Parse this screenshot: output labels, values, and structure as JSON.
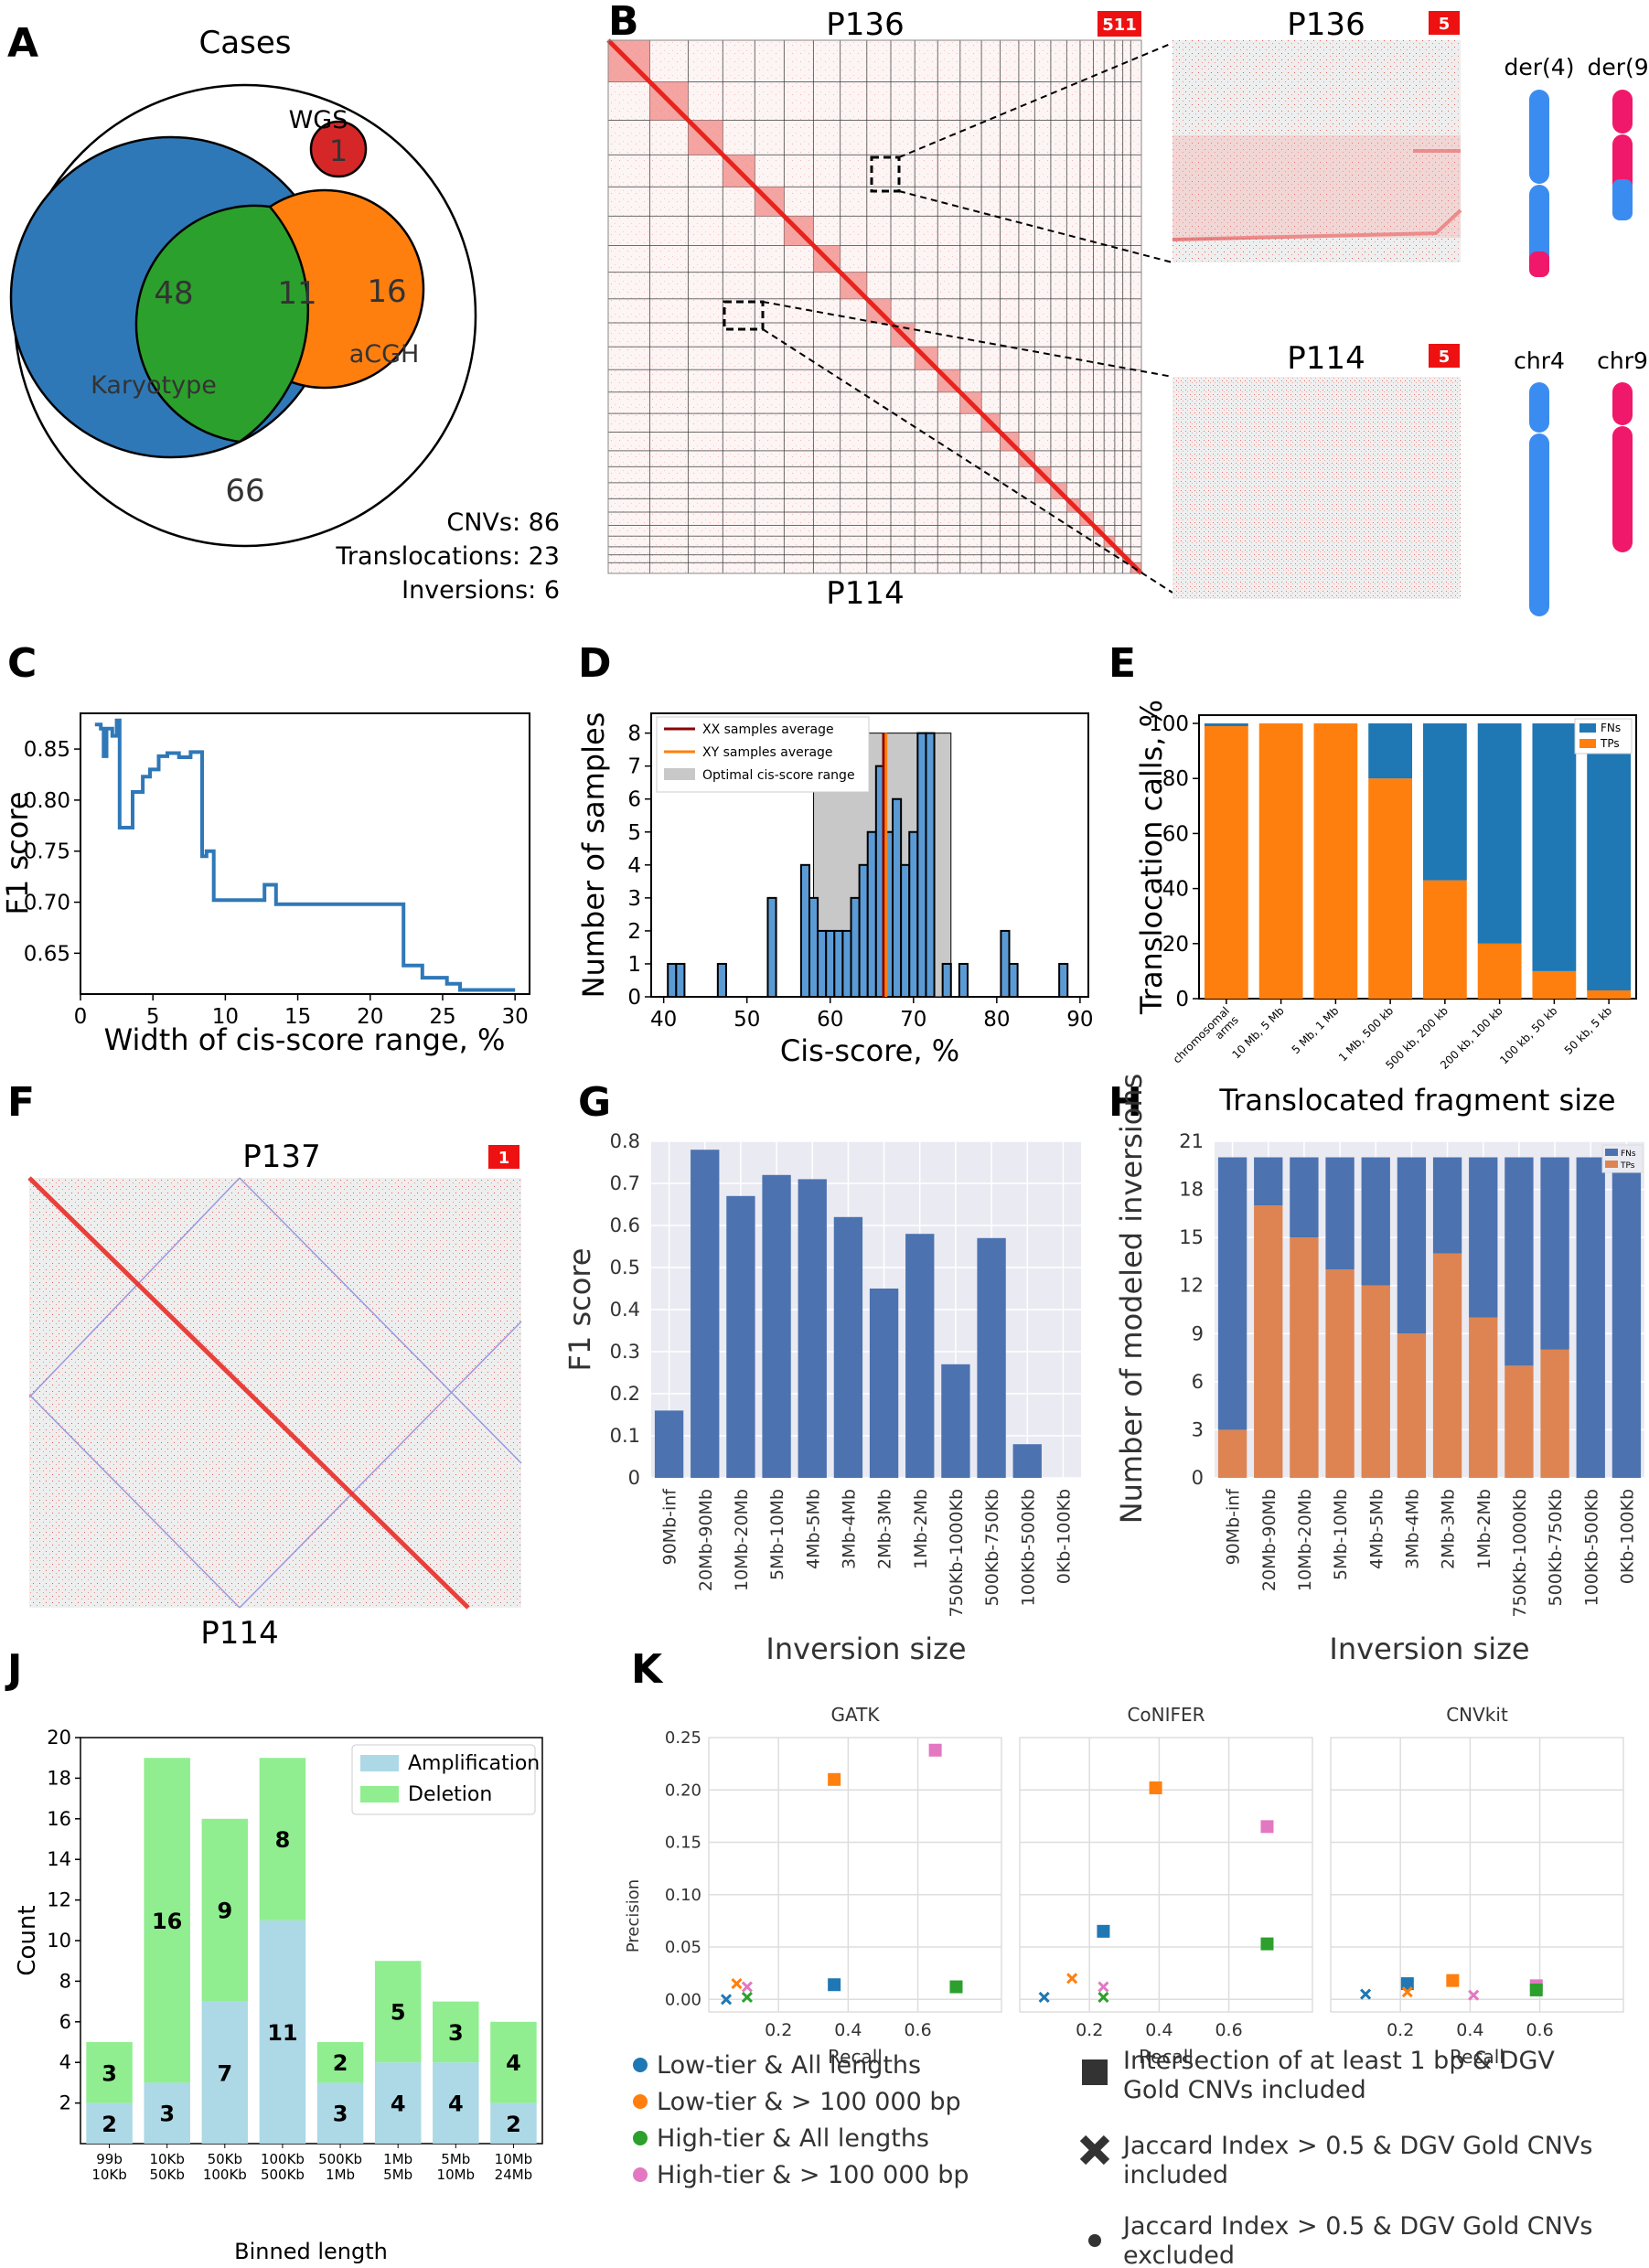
{
  "colors": {
    "blue": "#2f78b8",
    "orange": "#ff7f0e",
    "green": "#2ca02c",
    "red": "#d62728",
    "pink": "#e377c2",
    "seaborn_blue": "#4c72b0",
    "seaborn_orange": "#dd8452",
    "chr_blue": "#3b8cf0",
    "chr_pink": "#f0186a",
    "light_blue": "#add8e6",
    "light_green": "#90ee90",
    "grid_bg": "#eaeaf2",
    "hic_red": "#e8231e",
    "hic_bg": "#eeeeee"
  },
  "panels": {
    "A": "A",
    "B": "B",
    "C": "C",
    "D": "D",
    "E": "E",
    "F": "F",
    "G": "G",
    "H": "H",
    "J": "J",
    "K": "K"
  },
  "panelA": {
    "title": "Cases",
    "wgs_label": "WGS",
    "wgs_count": "1",
    "karyotype_only": "48",
    "overlap": "11",
    "acgh_only": "16",
    "karyotype_label": "Karyotype",
    "acgh_label": "aCGH",
    "outside": "66",
    "cnvs": "CNVs: 86",
    "translocations": "Translocations: 23",
    "inversions": "Inversions: 6"
  },
  "panelB": {
    "top_label": "P136",
    "bottom_label": "P114",
    "badge_main": "511",
    "zoom1_label": "P136",
    "zoom1_badge": "5",
    "zoom2_label": "P114",
    "zoom2_badge": "5",
    "der4": "der(4)",
    "der9": "der(9)",
    "chr4": "chr4",
    "chr9": "chr9"
  },
  "panelF": {
    "top_label": "P137",
    "bottom_label": "P114",
    "badge": "1"
  },
  "chart_data": [
    {
      "panel": "C",
      "type": "line",
      "xlabel": "Width of cis-score range, %",
      "ylabel": "F1 score",
      "xlim": [
        0,
        31
      ],
      "ylim": [
        0.61,
        0.885
      ],
      "xticks": [
        "0",
        "5",
        "10",
        "15",
        "20",
        "25",
        "30"
      ],
      "yticks": [
        "0.65",
        "0.70",
        "0.75",
        "0.80",
        "0.85"
      ],
      "x": [
        1.0,
        1.4,
        1.4,
        1.6,
        1.6,
        1.8,
        1.8,
        2.2,
        2.2,
        2.5,
        2.5,
        2.7,
        2.7,
        3.3,
        3.3,
        3.6,
        3.6,
        4.3,
        4.3,
        4.8,
        4.8,
        5.4,
        5.4,
        6.0,
        6.0,
        6.8,
        6.8,
        7.6,
        7.6,
        8.4,
        8.4,
        8.7,
        8.7,
        9.2,
        9.2,
        9.7,
        9.7,
        12.7,
        12.7,
        13.5,
        13.5,
        22.3,
        22.3,
        23.0,
        23.0,
        23.6,
        23.6,
        25.3,
        25.3,
        26.2,
        26.2,
        30.0
      ],
      "y": [
        0.874,
        0.874,
        0.87,
        0.87,
        0.843,
        0.843,
        0.87,
        0.87,
        0.863,
        0.863,
        0.878,
        0.878,
        0.773,
        0.773,
        0.773,
        0.773,
        0.808,
        0.808,
        0.823,
        0.823,
        0.83,
        0.83,
        0.843,
        0.843,
        0.846,
        0.846,
        0.842,
        0.842,
        0.847,
        0.847,
        0.745,
        0.745,
        0.75,
        0.75,
        0.702,
        0.702,
        0.702,
        0.702,
        0.717,
        0.717,
        0.698,
        0.698,
        0.638,
        0.638,
        0.638,
        0.638,
        0.626,
        0.626,
        0.62,
        0.62,
        0.614,
        0.614
      ]
    },
    {
      "panel": "D",
      "type": "bar",
      "xlabel": "Cis-score, %",
      "ylabel": "Number of samples",
      "xlim": [
        38.5,
        91
      ],
      "ylim": [
        0,
        8.6
      ],
      "xticks": [
        "40",
        "50",
        "60",
        "70",
        "80",
        "90"
      ],
      "yticks": [
        "0",
        "1",
        "2",
        "3",
        "4",
        "5",
        "6",
        "7",
        "8"
      ],
      "bin_width": 1,
      "bins": [
        {
          "x": 41,
          "v": 1
        },
        {
          "x": 42,
          "v": 1
        },
        {
          "x": 47,
          "v": 1
        },
        {
          "x": 53,
          "v": 3
        },
        {
          "x": 57,
          "v": 4
        },
        {
          "x": 58,
          "v": 3
        },
        {
          "x": 59,
          "v": 2
        },
        {
          "x": 60,
          "v": 2
        },
        {
          "x": 61,
          "v": 2
        },
        {
          "x": 62,
          "v": 2
        },
        {
          "x": 63,
          "v": 3
        },
        {
          "x": 64,
          "v": 4
        },
        {
          "x": 65,
          "v": 5
        },
        {
          "x": 66,
          "v": 7
        },
        {
          "x": 67,
          "v": 5
        },
        {
          "x": 68,
          "v": 6
        },
        {
          "x": 69,
          "v": 4
        },
        {
          "x": 70,
          "v": 5
        },
        {
          "x": 71,
          "v": 8
        },
        {
          "x": 72,
          "v": 8
        },
        {
          "x": 74,
          "v": 1
        },
        {
          "x": 76,
          "v": 1
        },
        {
          "x": 81,
          "v": 2
        },
        {
          "x": 82,
          "v": 1
        },
        {
          "x": 88,
          "v": 1
        }
      ],
      "xx_average": 66.4,
      "xy_average": 66.7,
      "optimal_range": [
        58,
        74.5
      ],
      "legend": [
        "XX samples average",
        "XY samples average",
        "Optimal cis-score range"
      ]
    },
    {
      "panel": "E",
      "type": "bar",
      "stacked": true,
      "xlabel": "Translocated fragment size",
      "ylabel": "Translocation calls, %",
      "ylim": [
        0,
        103
      ],
      "yticks": [
        "0",
        "20",
        "40",
        "60",
        "80",
        "100"
      ],
      "categories": [
        "chromosomal arms",
        "10 Mb, 5 Mb",
        "5 Mb, 1 Mb",
        "1 Mb, 500 kb",
        "500 kb, 200 kb",
        "200 kb, 100 kb",
        "100 kb, 50 kb",
        "50 kb, 5 kb"
      ],
      "series": [
        {
          "name": "TPs",
          "values": [
            99,
            100,
            100,
            80,
            43,
            20,
            10,
            3
          ]
        },
        {
          "name": "FNs",
          "values": [
            1,
            0,
            0,
            20,
            57,
            80,
            90,
            97
          ]
        }
      ],
      "legend": [
        "FNs",
        "TPs"
      ]
    },
    {
      "panel": "G",
      "type": "bar",
      "xlabel": "Inversion size",
      "ylabel": "F1 score",
      "ylim": [
        0,
        0.8
      ],
      "yticks": [
        "0",
        "0.1",
        "0.2",
        "0.3",
        "0.4",
        "0.5",
        "0.6",
        "0.7",
        "0.8"
      ],
      "categories": [
        "90Mb-inf",
        "20Mb-90Mb",
        "10Mb-20Mb",
        "5Mb-10Mb",
        "4Mb-5Mb",
        "3Mb-4Mb",
        "2Mb-3Mb",
        "1Mb-2Mb",
        "750Kb-1000Kb",
        "500Kb-750Kb",
        "100Kb-500Kb",
        "0Kb-100Kb"
      ],
      "values": [
        0.16,
        0.78,
        0.67,
        0.72,
        0.71,
        0.62,
        0.45,
        0.58,
        0.27,
        0.57,
        0.08,
        0
      ]
    },
    {
      "panel": "H",
      "type": "bar",
      "stacked": true,
      "xlabel": "Inversion size",
      "ylabel": "Number of modeled inversions",
      "ylim": [
        0,
        21
      ],
      "yticks": [
        "0",
        "3",
        "6",
        "9",
        "12",
        "15",
        "18",
        "21"
      ],
      "categories": [
        "90Mb-inf",
        "20Mb-90Mb",
        "10Mb-20Mb",
        "5Mb-10Mb",
        "4Mb-5Mb",
        "3Mb-4Mb",
        "2Mb-3Mb",
        "1Mb-2Mb",
        "750Kb-1000Kb",
        "500Kb-750Kb",
        "100Kb-500Kb",
        "0Kb-100Kb"
      ],
      "series": [
        {
          "name": "TPs",
          "values": [
            3,
            17,
            15,
            13,
            12,
            9,
            14,
            10,
            7,
            8,
            0,
            0
          ]
        },
        {
          "name": "FNs",
          "values": [
            17,
            3,
            5,
            7,
            8,
            11,
            6,
            10,
            13,
            12,
            20,
            20
          ]
        }
      ],
      "legend": [
        "FNs",
        "TPs"
      ]
    },
    {
      "panel": "J",
      "type": "bar",
      "stacked": true,
      "xlabel": "Binned length",
      "ylabel": "Count",
      "ylim": [
        0,
        20
      ],
      "yticks": [
        "2",
        "4",
        "6",
        "8",
        "10",
        "12",
        "14",
        "16",
        "18",
        "20"
      ],
      "categories": [
        "99b 10Kb",
        "10Kb 50Kb",
        "50Kb 100Kb",
        "100Kb 500Kb",
        "500Kb 1Mb",
        "1Mb 5Mb",
        "5Mb 10Mb",
        "10Mb 24Mb"
      ],
      "series": [
        {
          "name": "Amplification",
          "values": [
            2,
            3,
            7,
            11,
            3,
            4,
            4,
            2
          ]
        },
        {
          "name": "Deletion",
          "values": [
            3,
            16,
            9,
            8,
            2,
            5,
            3,
            4
          ]
        }
      ],
      "legend": [
        "Amplification",
        "Deletion"
      ]
    },
    {
      "panel": "K",
      "type": "scatter",
      "xlabel": "Recall",
      "ylabel": "Precision",
      "ylim": [
        -0.012,
        0.25
      ],
      "xlim": [
        0,
        0.84
      ],
      "xticks": [
        "0.2",
        "0.4",
        "0.6"
      ],
      "yticks": [
        "0.00",
        "0.05",
        "0.10",
        "0.15",
        "0.20",
        "0.25"
      ],
      "subplots": [
        {
          "title": "GATK",
          "points": [
            {
              "x": 0.36,
              "y": 0.21,
              "group": "Low-tier & > 100 000 bp",
              "marker": "square"
            },
            {
              "x": 0.65,
              "y": 0.238,
              "group": "High-tier & > 100 000 bp",
              "marker": "square"
            },
            {
              "x": 0.36,
              "y": 0.014,
              "group": "Low-tier & All lengths",
              "marker": "square"
            },
            {
              "x": 0.71,
              "y": 0.012,
              "group": "High-tier & All lengths",
              "marker": "square"
            },
            {
              "x": 0.05,
              "y": 0.0,
              "group": "Low-tier & All lengths",
              "marker": "x"
            },
            {
              "x": 0.08,
              "y": 0.015,
              "group": "Low-tier & > 100 000 bp",
              "marker": "x"
            },
            {
              "x": 0.11,
              "y": 0.012,
              "group": "High-tier & > 100 000 bp",
              "marker": "x"
            },
            {
              "x": 0.11,
              "y": 0.002,
              "group": "High-tier & All lengths",
              "marker": "x"
            }
          ]
        },
        {
          "title": "CoNIFER",
          "points": [
            {
              "x": 0.39,
              "y": 0.202,
              "group": "Low-tier & > 100 000 bp",
              "marker": "square"
            },
            {
              "x": 0.71,
              "y": 0.165,
              "group": "High-tier & > 100 000 bp",
              "marker": "square"
            },
            {
              "x": 0.24,
              "y": 0.065,
              "group": "Low-tier & All lengths",
              "marker": "square"
            },
            {
              "x": 0.71,
              "y": 0.053,
              "group": "High-tier & All lengths",
              "marker": "square"
            },
            {
              "x": 0.07,
              "y": 0.002,
              "group": "Low-tier & All lengths",
              "marker": "x"
            },
            {
              "x": 0.15,
              "y": 0.02,
              "group": "Low-tier & > 100 000 bp",
              "marker": "x"
            },
            {
              "x": 0.24,
              "y": 0.012,
              "group": "High-tier & > 100 000 bp",
              "marker": "x"
            },
            {
              "x": 0.24,
              "y": 0.002,
              "group": "High-tier & All lengths",
              "marker": "x"
            }
          ]
        },
        {
          "title": "CNVkit",
          "points": [
            {
              "x": 0.22,
              "y": 0.015,
              "group": "Low-tier & All lengths",
              "marker": "square"
            },
            {
              "x": 0.35,
              "y": 0.018,
              "group": "Low-tier & > 100 000 bp",
              "marker": "square"
            },
            {
              "x": 0.59,
              "y": 0.013,
              "group": "High-tier & > 100 000 bp",
              "marker": "square"
            },
            {
              "x": 0.59,
              "y": 0.009,
              "group": "High-tier & All lengths",
              "marker": "square"
            },
            {
              "x": 0.1,
              "y": 0.005,
              "group": "Low-tier & All lengths",
              "marker": "x"
            },
            {
              "x": 0.22,
              "y": 0.007,
              "group": "Low-tier & > 100 000 bp",
              "marker": "x"
            },
            {
              "x": 0.41,
              "y": 0.004,
              "group": "High-tier & > 100 000 bp",
              "marker": "x"
            }
          ]
        }
      ],
      "legend_groups": [
        "Low-tier & All lengths",
        "Low-tier & > 100 000 bp",
        "High-tier & All lengths",
        "High-tier & > 100 000 bp"
      ],
      "legend_markers": [
        "Intersection of at least 1 bp & DGV Gold CNVs included",
        "Jaccard Index > 0.5 & DGV Gold CNVs included",
        "Jaccard Index > 0.5 & DGV Gold CNVs excluded"
      ]
    }
  ]
}
